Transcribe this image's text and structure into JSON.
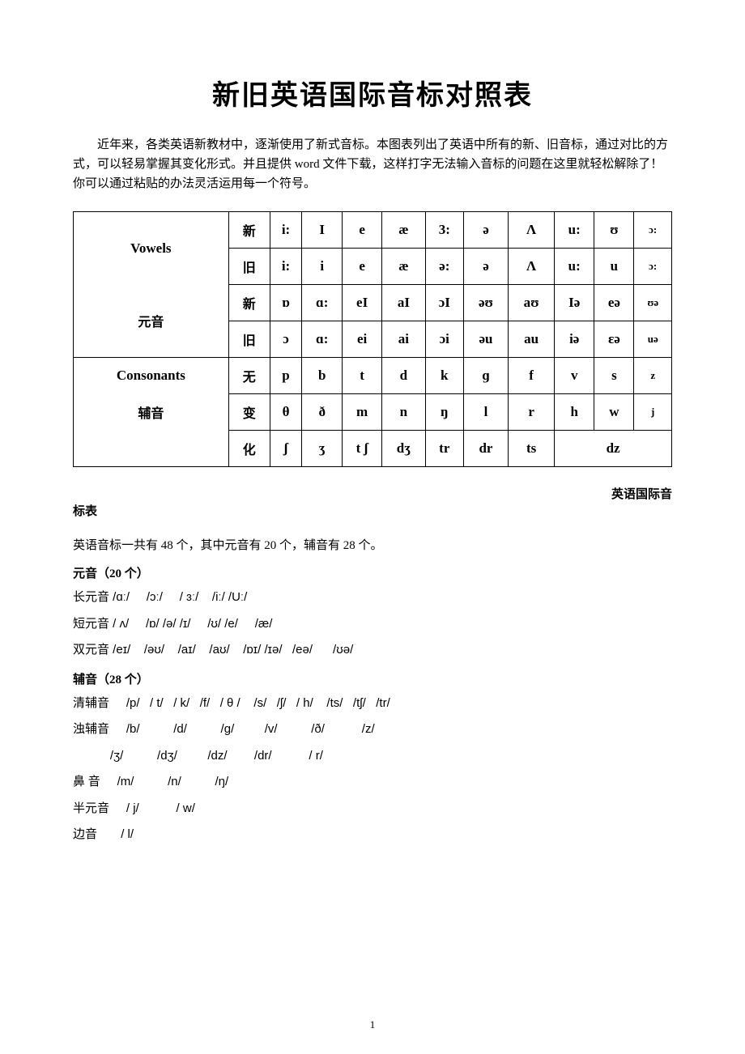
{
  "title": "新旧英语国际音标对照表",
  "intro": "近年来，各类英语新教材中，逐渐使用了新式音标。本图表列出了英语中所有的新、旧音标，通过对比的方式，可以轻易掌握其变化形式。并且提供 word 文件下载，这样打字无法输入音标的问题在这里就轻松解除了！你可以通过粘贴的办法灵活运用每一个符号。",
  "table": {
    "vowels_en": "Vowels",
    "vowels_cn": "元音",
    "cons_en": "Consonants",
    "cons_cn": "辅音",
    "label_new": "新",
    "label_old": "旧",
    "label_none": "无",
    "label_change": "变",
    "label_hua": "化",
    "row1": [
      "i:",
      "I",
      "e",
      "æ",
      "3:",
      "ə",
      "Λ",
      "u:",
      "ʊ",
      "ɔ:"
    ],
    "row2": [
      "i:",
      "i",
      "e",
      "æ",
      "ə:",
      "ə",
      "Λ",
      "u:",
      "u",
      "ɔ:"
    ],
    "row3": [
      "ɒ",
      "ɑ:",
      "eI",
      "aI",
      "ɔI",
      "əʊ",
      "aʊ",
      "Iə",
      "eə",
      "ʊə"
    ],
    "row4": [
      "ɔ",
      "ɑ:",
      "ei",
      "ai",
      "ɔi",
      "əu",
      "au",
      "iə",
      "ɛə",
      "uə"
    ],
    "row5": [
      "p",
      "b",
      "t",
      "d",
      "k",
      "ɡ",
      "f",
      "v",
      "s",
      "z"
    ],
    "row6": [
      "θ",
      "ð",
      "m",
      "n",
      "ŋ",
      "l",
      "r",
      "h",
      "w",
      "j"
    ],
    "row7": [
      "ʃ",
      "ʒ",
      "t ʃ",
      "dʒ",
      "tr",
      "dr",
      "ts"
    ],
    "row7_last": "dz"
  },
  "subtitle_right": "英语国际音",
  "subtitle_left": "标表",
  "summary": "英语音标一共有 48 个，其中元音有 20 个，辅音有 28 个。",
  "vowels_section": "元音（20 个）",
  "long_v_label": "长元音",
  "long_v": " /ɑː/     /ɔː/     / ɜː/    /iː/ /Uː/",
  "short_v_label": "短元音",
  "short_v": " / ʌ/     /ɒ/ /ə/ /ɪ/     /ʊ/ /e/     /æ/",
  "diph_label": "双元音",
  "diph": " /eɪ/    /əʊ/    /aɪ/    /aʊ/    /ɒɪ/ /ɪə/   /eə/      /ʊə/",
  "cons_section": "辅音（28 个）",
  "voiceless_label": "清辅音",
  "voiceless": "     /p/   / t/   / k/   /f/   / θ /    /s/   /ʃ/   / h/    /ts/   /tʃ/   /tr/",
  "voiced_label": "浊辅音",
  "voiced1": "     /b/          /d/          /ɡ/         /v/          /ð/           /z/",
  "voiced2": "           /ʒ/          /dʒ/         /dz/        /dr/           / r/",
  "nasal_label": "鼻 音",
  "nasal": "     /m/          /n/          /ŋ/",
  "semi_label": "半元音",
  "semi": "     / j/           / w/",
  "lateral_label": "边音",
  "lateral": "       / l/",
  "page_number": "1",
  "colors": {
    "text": "#000000",
    "background": "#ffffff",
    "border": "#000000"
  }
}
